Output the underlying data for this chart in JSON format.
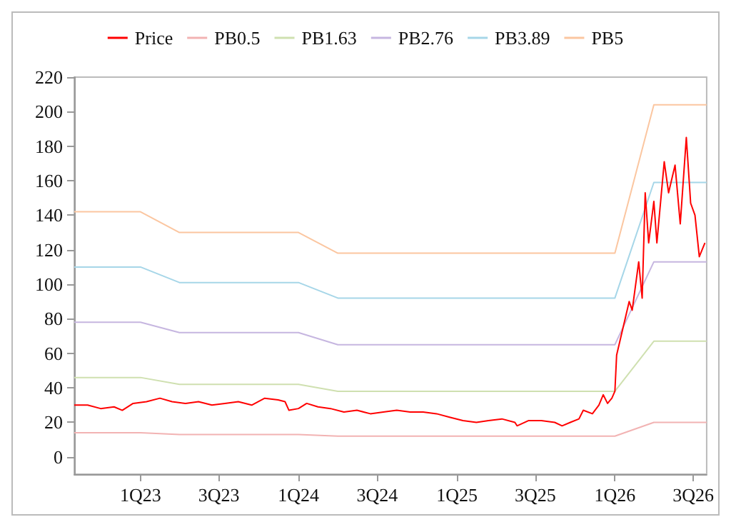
{
  "chart_data": {
    "type": "line",
    "legend": "top",
    "grid": false,
    "xlim": [
      "2022-08-01",
      "2026-08-01"
    ],
    "xticks": [
      {
        "value": "2023-01-01",
        "label": "1Q23"
      },
      {
        "value": "2023-07-01",
        "label": "3Q23"
      },
      {
        "value": "2024-01-01",
        "label": "1Q24"
      },
      {
        "value": "2024-07-01",
        "label": "3Q24"
      },
      {
        "value": "2025-01-01",
        "label": "1Q25"
      },
      {
        "value": "2025-07-01",
        "label": "3Q25"
      },
      {
        "value": "2026-01-01",
        "label": "1Q26"
      },
      {
        "value": "2026-07-01",
        "label": "3Q26"
      }
    ],
    "ylim": [
      -10,
      220
    ],
    "yticks": [
      0,
      20,
      40,
      60,
      80,
      100,
      120,
      140,
      160,
      180,
      200,
      220
    ],
    "series": [
      {
        "name": "Price",
        "color": "#ff0000",
        "x": [
          "2022-08-01",
          "2022-09-01",
          "2022-10-01",
          "2022-11-01",
          "2022-11-20",
          "2022-12-15",
          "2023-01-15",
          "2023-02-15",
          "2023-03-15",
          "2023-04-15",
          "2023-05-15",
          "2023-06-15",
          "2023-07-15",
          "2023-08-15",
          "2023-09-15",
          "2023-10-15",
          "2023-11-15",
          "2023-12-01",
          "2023-12-10",
          "2024-01-01",
          "2024-01-20",
          "2024-02-15",
          "2024-03-15",
          "2024-04-15",
          "2024-05-15",
          "2024-06-15",
          "2024-07-15",
          "2024-08-15",
          "2024-09-15",
          "2024-10-15",
          "2024-11-15",
          "2024-12-15",
          "2025-01-15",
          "2025-02-15",
          "2025-03-15",
          "2025-04-15",
          "2025-05-15",
          "2025-05-20",
          "2025-06-15",
          "2025-07-15",
          "2025-08-15",
          "2025-09-01",
          "2025-09-20",
          "2025-10-10",
          "2025-10-20",
          "2025-11-10",
          "2025-11-25",
          "2025-12-05",
          "2025-12-15",
          "2025-12-25",
          "2026-01-01",
          "2026-01-05",
          "2026-01-20",
          "2026-02-03",
          "2026-02-10",
          "2026-02-25",
          "2026-03-05",
          "2026-03-12",
          "2026-03-20",
          "2026-04-01",
          "2026-04-08",
          "2026-04-25",
          "2026-05-05",
          "2026-05-20",
          "2026-06-01",
          "2026-06-15",
          "2026-06-25",
          "2026-07-05",
          "2026-07-15",
          "2026-07-28"
        ],
        "values": [
          30,
          30,
          28,
          29,
          27,
          31,
          32,
          34,
          32,
          31,
          32,
          30,
          31,
          32,
          30,
          34,
          33,
          32,
          27,
          28,
          31,
          29,
          28,
          26,
          27,
          25,
          26,
          27,
          26,
          26,
          25,
          23,
          21,
          20,
          21,
          22,
          20,
          18,
          21,
          21,
          20,
          18,
          20,
          22,
          27,
          25,
          30,
          36,
          31,
          34,
          38,
          59,
          75,
          90,
          85,
          113,
          92,
          153,
          124,
          148,
          124,
          171,
          153,
          169,
          135,
          185,
          147,
          140,
          116,
          124
        ]
      },
      {
        "name": "PB0.5",
        "color": "#f2b3b3",
        "x": [
          "2022-08-01",
          "2023-01-01",
          "2023-04-01",
          "2024-01-01",
          "2024-04-01",
          "2026-01-01",
          "2026-04-01",
          "2026-08-01"
        ],
        "values": [
          14,
          14,
          13,
          13,
          12,
          12,
          20,
          20
        ]
      },
      {
        "name": "PB1.63",
        "color": "#cfe0b0",
        "x": [
          "2022-08-01",
          "2023-01-01",
          "2023-04-01",
          "2024-01-01",
          "2024-04-01",
          "2026-01-01",
          "2026-04-01",
          "2026-08-01"
        ],
        "values": [
          46,
          46,
          42,
          42,
          38,
          38,
          67,
          67
        ]
      },
      {
        "name": "PB2.76",
        "color": "#c6b6e0",
        "x": [
          "2022-08-01",
          "2023-01-01",
          "2023-04-01",
          "2024-01-01",
          "2024-04-01",
          "2026-01-01",
          "2026-04-01",
          "2026-08-01"
        ],
        "values": [
          78,
          78,
          72,
          72,
          65,
          65,
          113,
          113
        ]
      },
      {
        "name": "PB3.89",
        "color": "#a6d6e8",
        "x": [
          "2022-08-01",
          "2023-01-01",
          "2023-04-01",
          "2024-01-01",
          "2024-04-01",
          "2026-01-01",
          "2026-04-01",
          "2026-08-01"
        ],
        "values": [
          110,
          110,
          101,
          101,
          92,
          92,
          159,
          159
        ]
      },
      {
        "name": "PB5",
        "color": "#fbc6a0",
        "x": [
          "2022-08-01",
          "2023-01-01",
          "2023-04-01",
          "2024-01-01",
          "2024-04-01",
          "2026-01-01",
          "2026-04-01",
          "2026-08-01"
        ],
        "values": [
          142,
          142,
          130,
          130,
          118,
          118,
          204,
          204
        ]
      }
    ]
  }
}
